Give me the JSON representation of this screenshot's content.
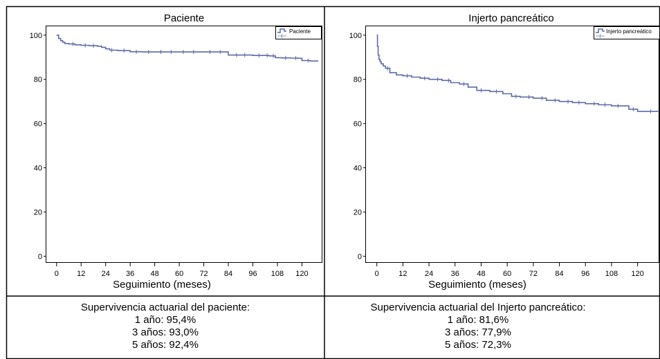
{
  "colors": {
    "curve": "#5a6aa8",
    "frame": "#000000",
    "background": "#ffffff"
  },
  "chart_data": [
    {
      "type": "line",
      "step": true,
      "title": "Paciente",
      "xlabel": "Seguimiento (meses)",
      "ylabel": "",
      "xlim": [
        -5,
        130
      ],
      "ylim": [
        -3,
        104
      ],
      "x_ticks": [
        0,
        12,
        24,
        36,
        48,
        60,
        72,
        84,
        96,
        108,
        120
      ],
      "y_ticks": [
        0,
        20,
        40,
        60,
        80,
        100
      ],
      "legend": {
        "position": "top-right",
        "entries": [
          "Paciente"
        ]
      },
      "series": [
        {
          "name": "Paciente",
          "x": [
            0,
            1,
            2,
            3,
            4,
            6,
            9,
            12,
            16,
            20,
            22,
            24,
            26,
            30,
            36,
            42,
            48,
            60,
            72,
            84,
            96,
            104,
            107,
            110,
            114,
            118,
            120,
            124,
            128
          ],
          "y": [
            100,
            98.5,
            97.5,
            96.8,
            96.2,
            96,
            95.6,
            95.4,
            95.2,
            95,
            94.5,
            93.8,
            93.2,
            93,
            92.5,
            92.4,
            92.4,
            92.4,
            92.4,
            91,
            90.8,
            90.6,
            89.8,
            89.7,
            89.6,
            89.5,
            88.5,
            88.3,
            88.3
          ],
          "censor_x": [
            8,
            14,
            18,
            27,
            33,
            39,
            45,
            51,
            56,
            62,
            67,
            75,
            80,
            88,
            92,
            99,
            103,
            106,
            112,
            117,
            123
          ]
        }
      ]
    },
    {
      "type": "line",
      "step": true,
      "title": "Injerto pancreático",
      "xlabel": "Seguimiento (meses)",
      "ylabel": "",
      "xlim": [
        -5,
        130
      ],
      "ylim": [
        -3,
        104
      ],
      "x_ticks": [
        0,
        12,
        24,
        36,
        48,
        60,
        72,
        84,
        96,
        108,
        120
      ],
      "y_ticks": [
        0,
        20,
        40,
        60,
        80,
        100
      ],
      "legend": {
        "position": "top-right",
        "entries": [
          "Injerto pancreático"
        ]
      },
      "series": [
        {
          "name": "Injerto pancreático",
          "x": [
            0,
            0.3,
            0.6,
            1,
            1.5,
            2,
            3,
            4,
            6,
            9,
            12,
            16,
            20,
            24,
            30,
            34,
            38,
            42,
            46,
            52,
            58,
            62,
            66,
            72,
            78,
            84,
            90,
            96,
            102,
            108,
            112,
            116,
            120,
            124,
            130
          ],
          "y": [
            100,
            95,
            91,
            89,
            88,
            87,
            86,
            85,
            83,
            82,
            81.6,
            81,
            80.5,
            80,
            79.5,
            78.5,
            77.9,
            76.5,
            75,
            74.5,
            73.5,
            72.3,
            72,
            71.5,
            70.5,
            70,
            69.5,
            69,
            68.5,
            68,
            68,
            66.5,
            65.5,
            65.5,
            65.5
          ],
          "censor_x": [
            5,
            14,
            22,
            28,
            33,
            40,
            48,
            55,
            64,
            70,
            76,
            82,
            88,
            93,
            100,
            105,
            111,
            118,
            126
          ]
        }
      ]
    }
  ],
  "captions": [
    {
      "heading": "Supervivencia actuarial del paciente:",
      "lines": [
        "1 año: 95,4%",
        "3 años: 93,0%",
        "5 años: 92,4%"
      ]
    },
    {
      "heading": "Supervivencia actuarial del Injerto pancreático:",
      "lines": [
        "1 año: 81,6%",
        "3 años: 77,9%",
        "5 años: 72,3%"
      ]
    }
  ]
}
